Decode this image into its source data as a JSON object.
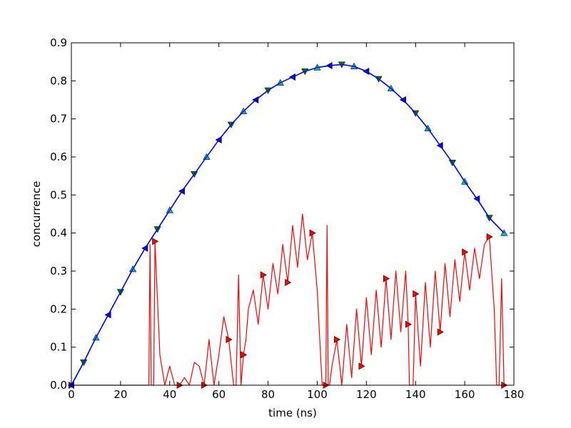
{
  "chart_data": {
    "type": "line",
    "xlabel": "time (ns)",
    "ylabel": "concurrence",
    "xlim": [
      0,
      180
    ],
    "ylim": [
      0,
      0.9
    ],
    "x_ticks": [
      "0",
      "20",
      "40",
      "60",
      "80",
      "100",
      "120",
      "140",
      "160",
      "180"
    ],
    "y_ticks": [
      "0.0",
      "0.1",
      "0.2",
      "0.3",
      "0.4",
      "0.5",
      "0.6",
      "0.7",
      "0.8",
      "0.9"
    ],
    "grid": false,
    "legend": "none",
    "series": [
      {
        "color": "#0000ff",
        "line": "smooth rise-and-fall curve with small ripples",
        "peak": {
          "x": 110,
          "y": 0.843
        },
        "end": {
          "x": 176,
          "y": 0.4
        },
        "markers": "blue left-pointing triangles",
        "x": [
          0,
          5,
          10,
          15,
          20,
          25,
          30,
          35,
          40,
          45,
          50,
          55,
          60,
          65,
          70,
          75,
          80,
          85,
          90,
          95,
          100,
          105,
          110,
          115,
          120,
          125,
          130,
          135,
          140,
          145,
          150,
          155,
          160,
          165,
          170,
          176
        ],
        "y": [
          0.0,
          0.06,
          0.125,
          0.185,
          0.245,
          0.305,
          0.36,
          0.41,
          0.46,
          0.51,
          0.555,
          0.6,
          0.645,
          0.685,
          0.72,
          0.75,
          0.775,
          0.795,
          0.81,
          0.825,
          0.835,
          0.84,
          0.843,
          0.838,
          0.825,
          0.805,
          0.78,
          0.75,
          0.715,
          0.675,
          0.63,
          0.585,
          0.535,
          0.49,
          0.44,
          0.4
        ]
      },
      {
        "color": "#00bfbf",
        "line": "overlaps the blue curve",
        "markers": "cyan up-pointing triangles",
        "x": [
          0,
          5,
          10,
          15,
          20,
          25,
          30,
          35,
          40,
          45,
          50,
          55,
          60,
          65,
          70,
          75,
          80,
          85,
          90,
          95,
          100,
          105,
          110,
          115,
          120,
          125,
          130,
          135,
          140,
          145,
          150,
          155,
          160,
          165,
          170,
          176
        ],
        "y": [
          0.0,
          0.06,
          0.125,
          0.185,
          0.245,
          0.305,
          0.36,
          0.41,
          0.46,
          0.51,
          0.555,
          0.6,
          0.645,
          0.685,
          0.72,
          0.75,
          0.775,
          0.795,
          0.81,
          0.825,
          0.835,
          0.84,
          0.843,
          0.838,
          0.825,
          0.805,
          0.78,
          0.75,
          0.715,
          0.675,
          0.63,
          0.585,
          0.535,
          0.49,
          0.44,
          0.4
        ]
      },
      {
        "color": "#008000",
        "line": "overlaps the blue curve",
        "markers": "green down-pointing triangles",
        "x": [
          0,
          5,
          10,
          15,
          20,
          25,
          30,
          35,
          40,
          45,
          50,
          55,
          60,
          65,
          70,
          75,
          80,
          85,
          90,
          95,
          100,
          105,
          110,
          115,
          120,
          125,
          130,
          135,
          140,
          145,
          150,
          155,
          160,
          165,
          170,
          176
        ],
        "y": [
          0.0,
          0.06,
          0.125,
          0.185,
          0.245,
          0.305,
          0.36,
          0.41,
          0.46,
          0.51,
          0.555,
          0.6,
          0.645,
          0.685,
          0.72,
          0.75,
          0.775,
          0.795,
          0.81,
          0.825,
          0.835,
          0.84,
          0.843,
          0.838,
          0.825,
          0.805,
          0.78,
          0.75,
          0.715,
          0.675,
          0.63,
          0.585,
          0.535,
          0.49,
          0.44,
          0.4
        ]
      },
      {
        "color": "#ff0000",
        "line": "strongly oscillating curve, drops to 0 in several places",
        "markers": "red right-pointing triangles",
        "x": [
          0,
          31.5,
          32,
          32.5,
          33.5,
          34,
          36,
          38,
          40,
          42,
          44,
          46,
          48,
          50,
          52,
          54,
          56,
          58,
          60,
          62,
          64,
          66,
          67,
          68,
          69,
          70,
          71,
          72,
          74,
          76,
          78,
          80,
          82,
          84,
          86,
          88,
          90,
          92,
          94,
          96,
          98,
          100,
          102,
          102.5,
          103,
          103.5,
          104,
          104.5,
          105,
          106,
          108,
          110,
          112,
          114,
          116,
          118,
          120,
          122,
          124,
          126,
          128,
          130,
          132,
          134,
          136,
          137,
          137.5,
          138,
          138.5,
          139,
          140,
          142,
          144,
          146,
          148,
          150,
          152,
          154,
          156,
          158,
          160,
          162,
          164,
          166,
          168,
          170,
          172,
          173,
          174,
          175,
          176
        ],
        "y": [
          0.0,
          0.0,
          0.37,
          0.0,
          0.0,
          0.378,
          0.08,
          0.0,
          0.05,
          0.0,
          0.0,
          0.02,
          0.0,
          0.06,
          0.05,
          0.0,
          0.12,
          0.0,
          0.08,
          0.18,
          0.12,
          0.0,
          0.0,
          0.29,
          0.0,
          0.08,
          0.12,
          0.2,
          0.25,
          0.16,
          0.29,
          0.2,
          0.32,
          0.24,
          0.37,
          0.27,
          0.42,
          0.31,
          0.45,
          0.33,
          0.4,
          0.25,
          0.0,
          0.0,
          0.0,
          0.0,
          0.42,
          0.0,
          0.0,
          0.05,
          0.12,
          0.0,
          0.16,
          0.02,
          0.2,
          0.05,
          0.23,
          0.08,
          0.25,
          0.1,
          0.28,
          0.12,
          0.3,
          0.14,
          0.3,
          0.16,
          0.0,
          0.0,
          0.0,
          0.0,
          0.24,
          0.05,
          0.27,
          0.1,
          0.3,
          0.14,
          0.32,
          0.18,
          0.33,
          0.22,
          0.35,
          0.25,
          0.36,
          0.28,
          0.37,
          0.39,
          0.2,
          0.0,
          0.0,
          0.28,
          0.0
        ]
      }
    ]
  }
}
